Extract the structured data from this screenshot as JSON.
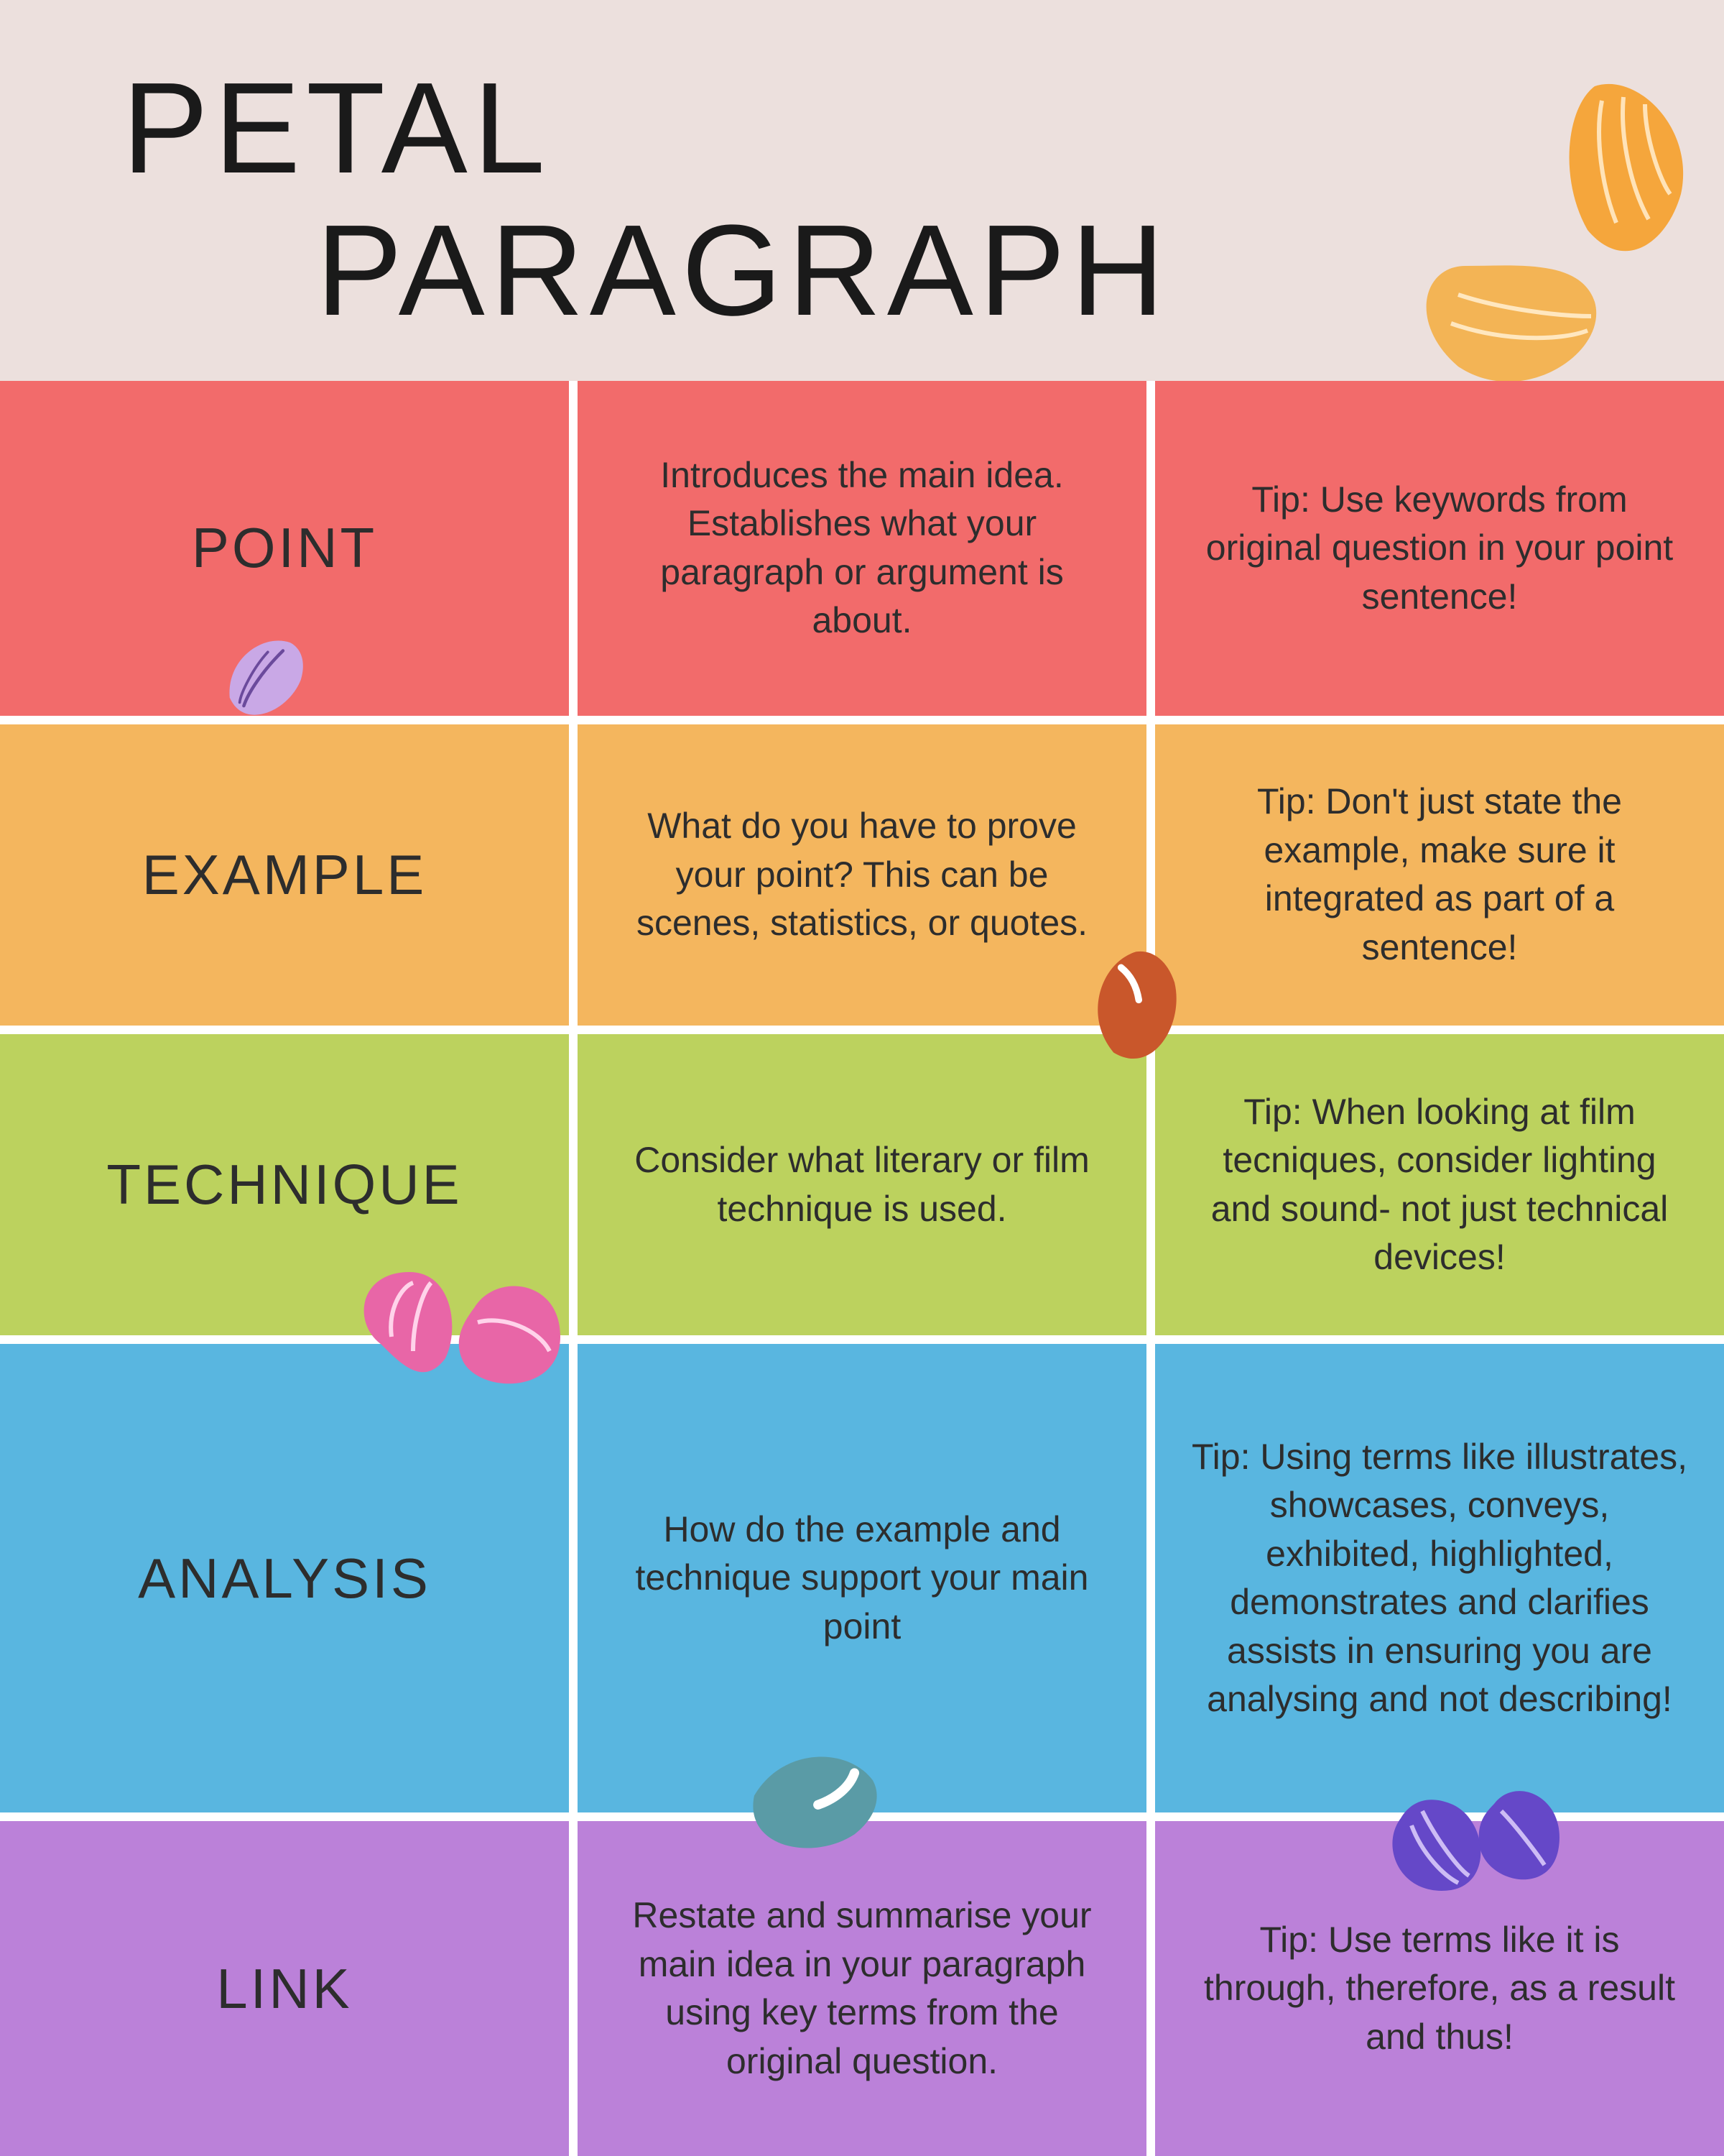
{
  "header": {
    "title_line1": "PETAL",
    "title_line2": "PARAGRAPH",
    "background_color": "#ece0dd"
  },
  "table": {
    "gap_color": "#ffffff",
    "label_fontsize": 78,
    "body_fontsize": 50,
    "text_color": "#2d2d2d"
  },
  "rows": [
    {
      "label": "POINT",
      "description": "Introduces the main idea. Establishes what your paragraph or argument is about.",
      "tip": "Tip: Use keywords from original question in your point sentence!",
      "bg_color": "#f26b6b"
    },
    {
      "label": "EXAMPLE",
      "description": "What  do you have to prove your point? This can be scenes, statistics, or quotes.",
      "tip": "Tip: Don't just state the example, make sure it integrated as part of a sentence!",
      "bg_color": "#f4b65e"
    },
    {
      "label": "TECHNIQUE",
      "description": "Consider what literary or film technique is used.",
      "tip": "Tip: When looking at film tecniques, consider lighting and sound- not just technical devices!",
      "bg_color": "#bcd25e"
    },
    {
      "label": "ANALYSIS",
      "description": "How do the example and technique support your main point",
      "tip": "Tip: Using terms like illustrates, showcases, conveys, exhibited, highlighted, demonstrates and clarifies assists in ensuring you are analysing and not describing!",
      "bg_color": "#59b6e0"
    },
    {
      "label": "LINK",
      "description": "Restate and summarise your main idea in your paragraph using key terms from the original question.",
      "tip": "Tip: Use terms like it is through, therefore, as a result and thus!",
      "bg_color": "#bb81d9"
    }
  ],
  "petals": {
    "header_orange1": "#f5a63c",
    "header_orange2": "#f3b455",
    "point_lilac": "#c9a8e6",
    "example_rust": "#c9572b",
    "technique_pink": "#e866a7",
    "analysis_teal": "#5a9ba6",
    "link_violet": "#6548c8"
  }
}
